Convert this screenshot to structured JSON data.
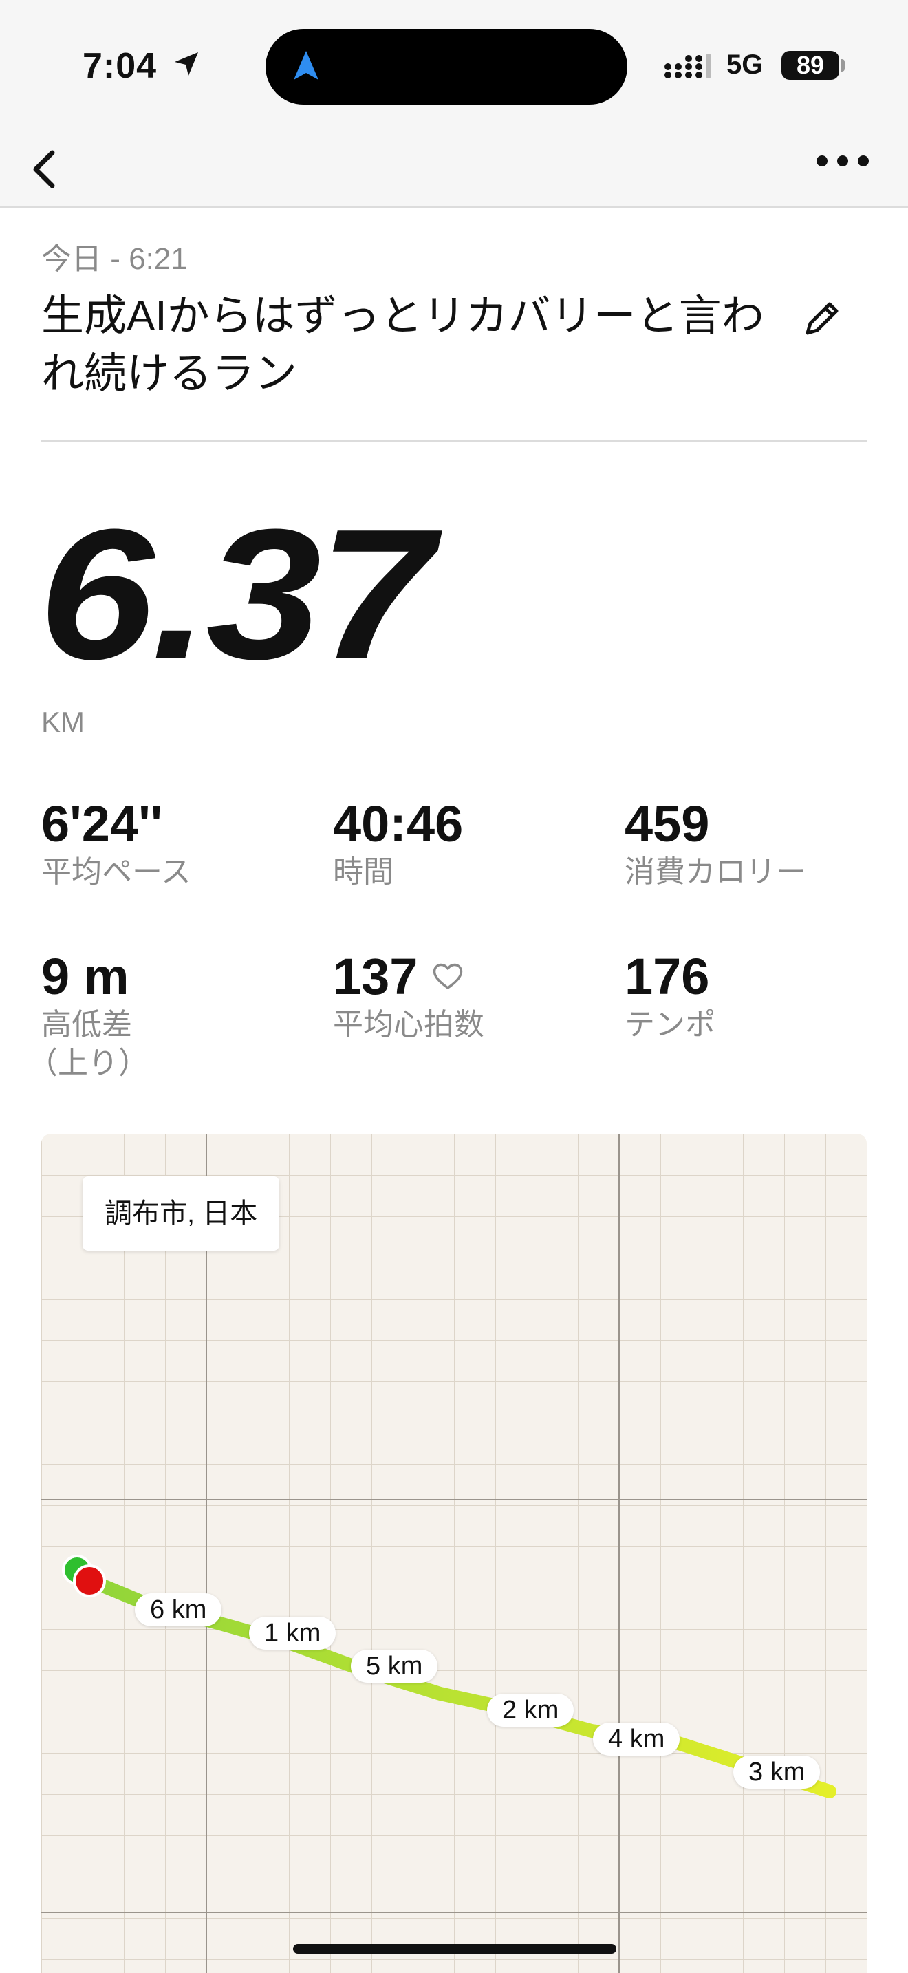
{
  "status_bar": {
    "time": "7:04",
    "network": "5G",
    "battery": "89"
  },
  "nav": {
    "back_icon": "chevron-left-icon",
    "more_icon": "ellipsis-icon"
  },
  "activity": {
    "date": "今日 - 6:21",
    "title": "生成AIからはずっとリカバリーと言われ続けるラン",
    "distance": "6.37",
    "distance_unit": "KM"
  },
  "stats": {
    "pace": {
      "value": "6'24''",
      "label": "平均ペース"
    },
    "time": {
      "value": "40:46",
      "label": "時間"
    },
    "calories": {
      "value": "459",
      "label": "消費カロリー"
    },
    "elevation": {
      "value": "9 m",
      "label": "高低差",
      "sublabel": "（上り）"
    },
    "heart_rate": {
      "value": "137",
      "label": "平均心拍数"
    },
    "cadence": {
      "value": "176",
      "label": "テンポ"
    }
  },
  "map": {
    "location": "調布市, 日本",
    "km_markers": [
      "6 km",
      "1 km",
      "5 km",
      "2 km",
      "4 km",
      "3 km"
    ],
    "colors": {
      "start": "#2fbf2f",
      "end": "#e01010",
      "route_start": "#8fd43a",
      "route_end": "#e4ef2a"
    }
  }
}
